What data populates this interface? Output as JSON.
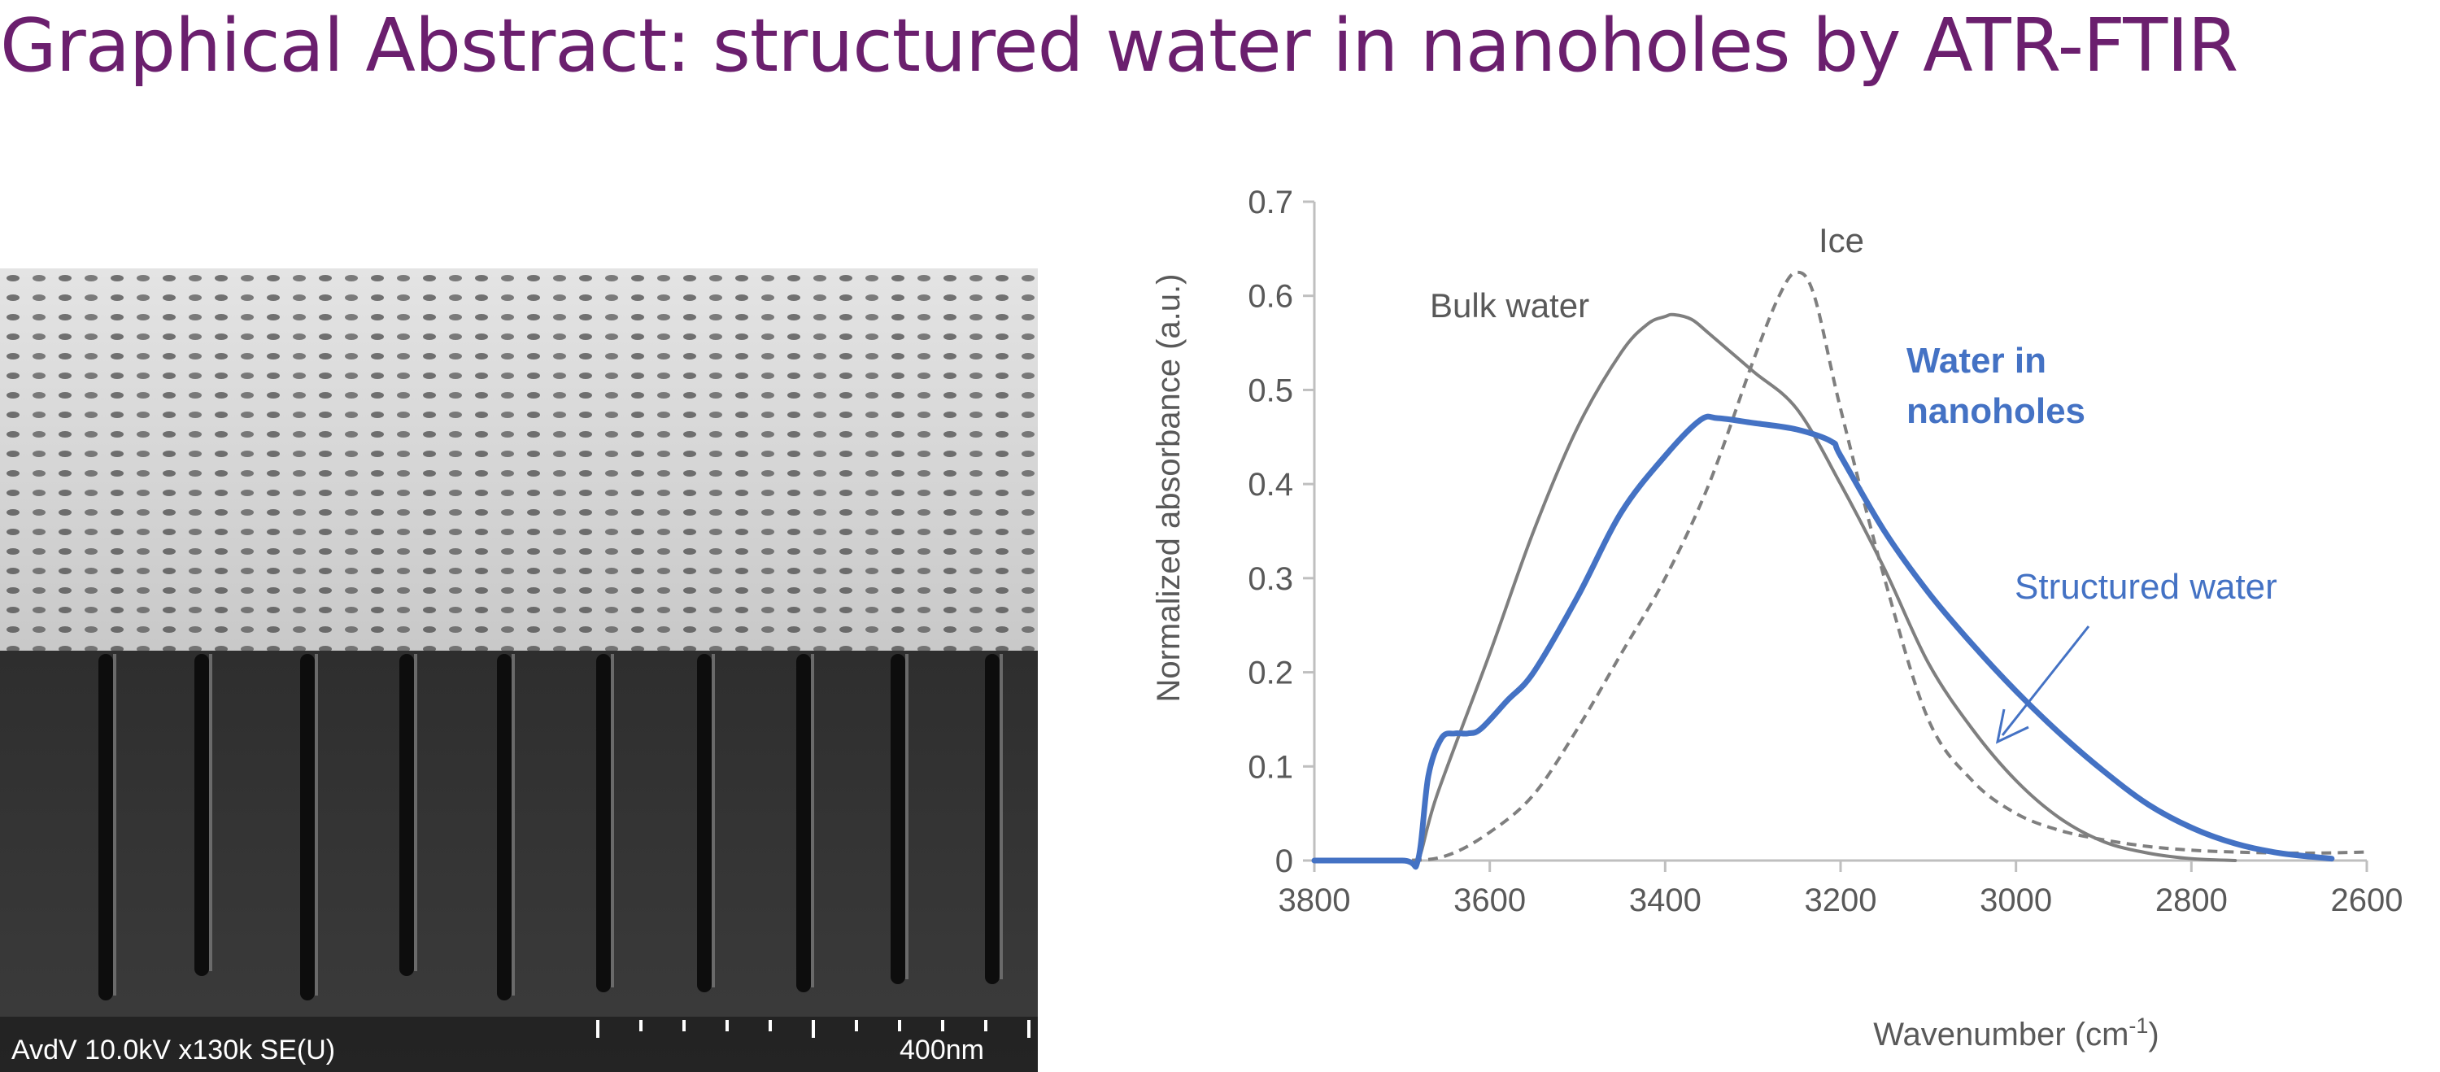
{
  "slide": {
    "title": "Graphical Abstract: structured water in nanoholes by ATR-FTIR"
  },
  "sem_image": {
    "caption": "AvdV 10.0kV x130k SE(U)",
    "scale_label": "400nm"
  },
  "colors": {
    "title": "#6b1f6e",
    "bulk_water": "#7f7f7f",
    "ice": "#7f7f7f",
    "nanoholes": "#4472c4",
    "axis": "#595959"
  },
  "chart_data": {
    "type": "line",
    "xlabel": "Wavenumber  (cm-1)",
    "xlabel_main": "Wavenumber  (cm",
    "xlabel_sup": "-1",
    "xlabel_end": ")",
    "ylabel": "Normalized absorbance  (a.u.)",
    "xlim": [
      3800,
      2600
    ],
    "ylim": [
      0,
      0.7
    ],
    "x_reversed": true,
    "x_ticks": [
      "3800",
      "3600",
      "3400",
      "3200",
      "3000",
      "2800",
      "2600"
    ],
    "y_ticks": [
      "0",
      "0.1",
      "0.2",
      "0.3",
      "0.4",
      "0.5",
      "0.6",
      "0.7"
    ],
    "grid": false,
    "legend": "none",
    "series": [
      {
        "name": "Bulk water",
        "style": "solid",
        "color": "#7f7f7f",
        "x": [
          3800,
          3700,
          3682,
          3660,
          3600,
          3550,
          3500,
          3450,
          3420,
          3400,
          3390,
          3370,
          3350,
          3300,
          3250,
          3200,
          3150,
          3100,
          3050,
          3000,
          2950,
          2900,
          2850,
          2800,
          2750
        ],
        "y": [
          0,
          0,
          0,
          0.07,
          0.22,
          0.35,
          0.46,
          0.54,
          0.57,
          0.578,
          0.58,
          0.575,
          0.56,
          0.52,
          0.48,
          0.4,
          0.31,
          0.21,
          0.14,
          0.085,
          0.045,
          0.02,
          0.008,
          0.002,
          0
        ]
      },
      {
        "name": "Ice",
        "style": "dashed",
        "color": "#7f7f7f",
        "x": [
          3800,
          3700,
          3650,
          3600,
          3550,
          3500,
          3450,
          3400,
          3350,
          3300,
          3270,
          3250,
          3230,
          3200,
          3150,
          3100,
          3050,
          3000,
          2950,
          2900,
          2850,
          2800,
          2750,
          2700,
          2650,
          2600
        ],
        "y": [
          0,
          0,
          0.005,
          0.03,
          0.07,
          0.14,
          0.22,
          0.3,
          0.4,
          0.53,
          0.6,
          0.625,
          0.6,
          0.48,
          0.3,
          0.15,
          0.085,
          0.05,
          0.032,
          0.022,
          0.015,
          0.011,
          0.009,
          0.008,
          0.008,
          0.009
        ]
      },
      {
        "name": "Water in nanoholes",
        "style": "solid-bold",
        "color": "#4472c4",
        "x": [
          3800,
          3700,
          3682,
          3670,
          3655,
          3640,
          3625,
          3610,
          3580,
          3550,
          3500,
          3450,
          3400,
          3360,
          3340,
          3300,
          3250,
          3210,
          3200,
          3150,
          3100,
          3050,
          3000,
          2950,
          2900,
          2850,
          2800,
          2750,
          2700,
          2640
        ],
        "y": [
          0,
          0,
          0,
          0.09,
          0.13,
          0.135,
          0.135,
          0.14,
          0.17,
          0.2,
          0.28,
          0.37,
          0.43,
          0.468,
          0.47,
          0.465,
          0.458,
          0.445,
          0.43,
          0.35,
          0.285,
          0.23,
          0.18,
          0.135,
          0.095,
          0.06,
          0.035,
          0.018,
          0.008,
          0.002
        ]
      }
    ],
    "annotations": {
      "bulk_water": "Bulk water",
      "ice": "Ice",
      "nanoholes_line1": "Water in",
      "nanoholes_line2": "nanoholes",
      "structured": "Structured water"
    }
  }
}
